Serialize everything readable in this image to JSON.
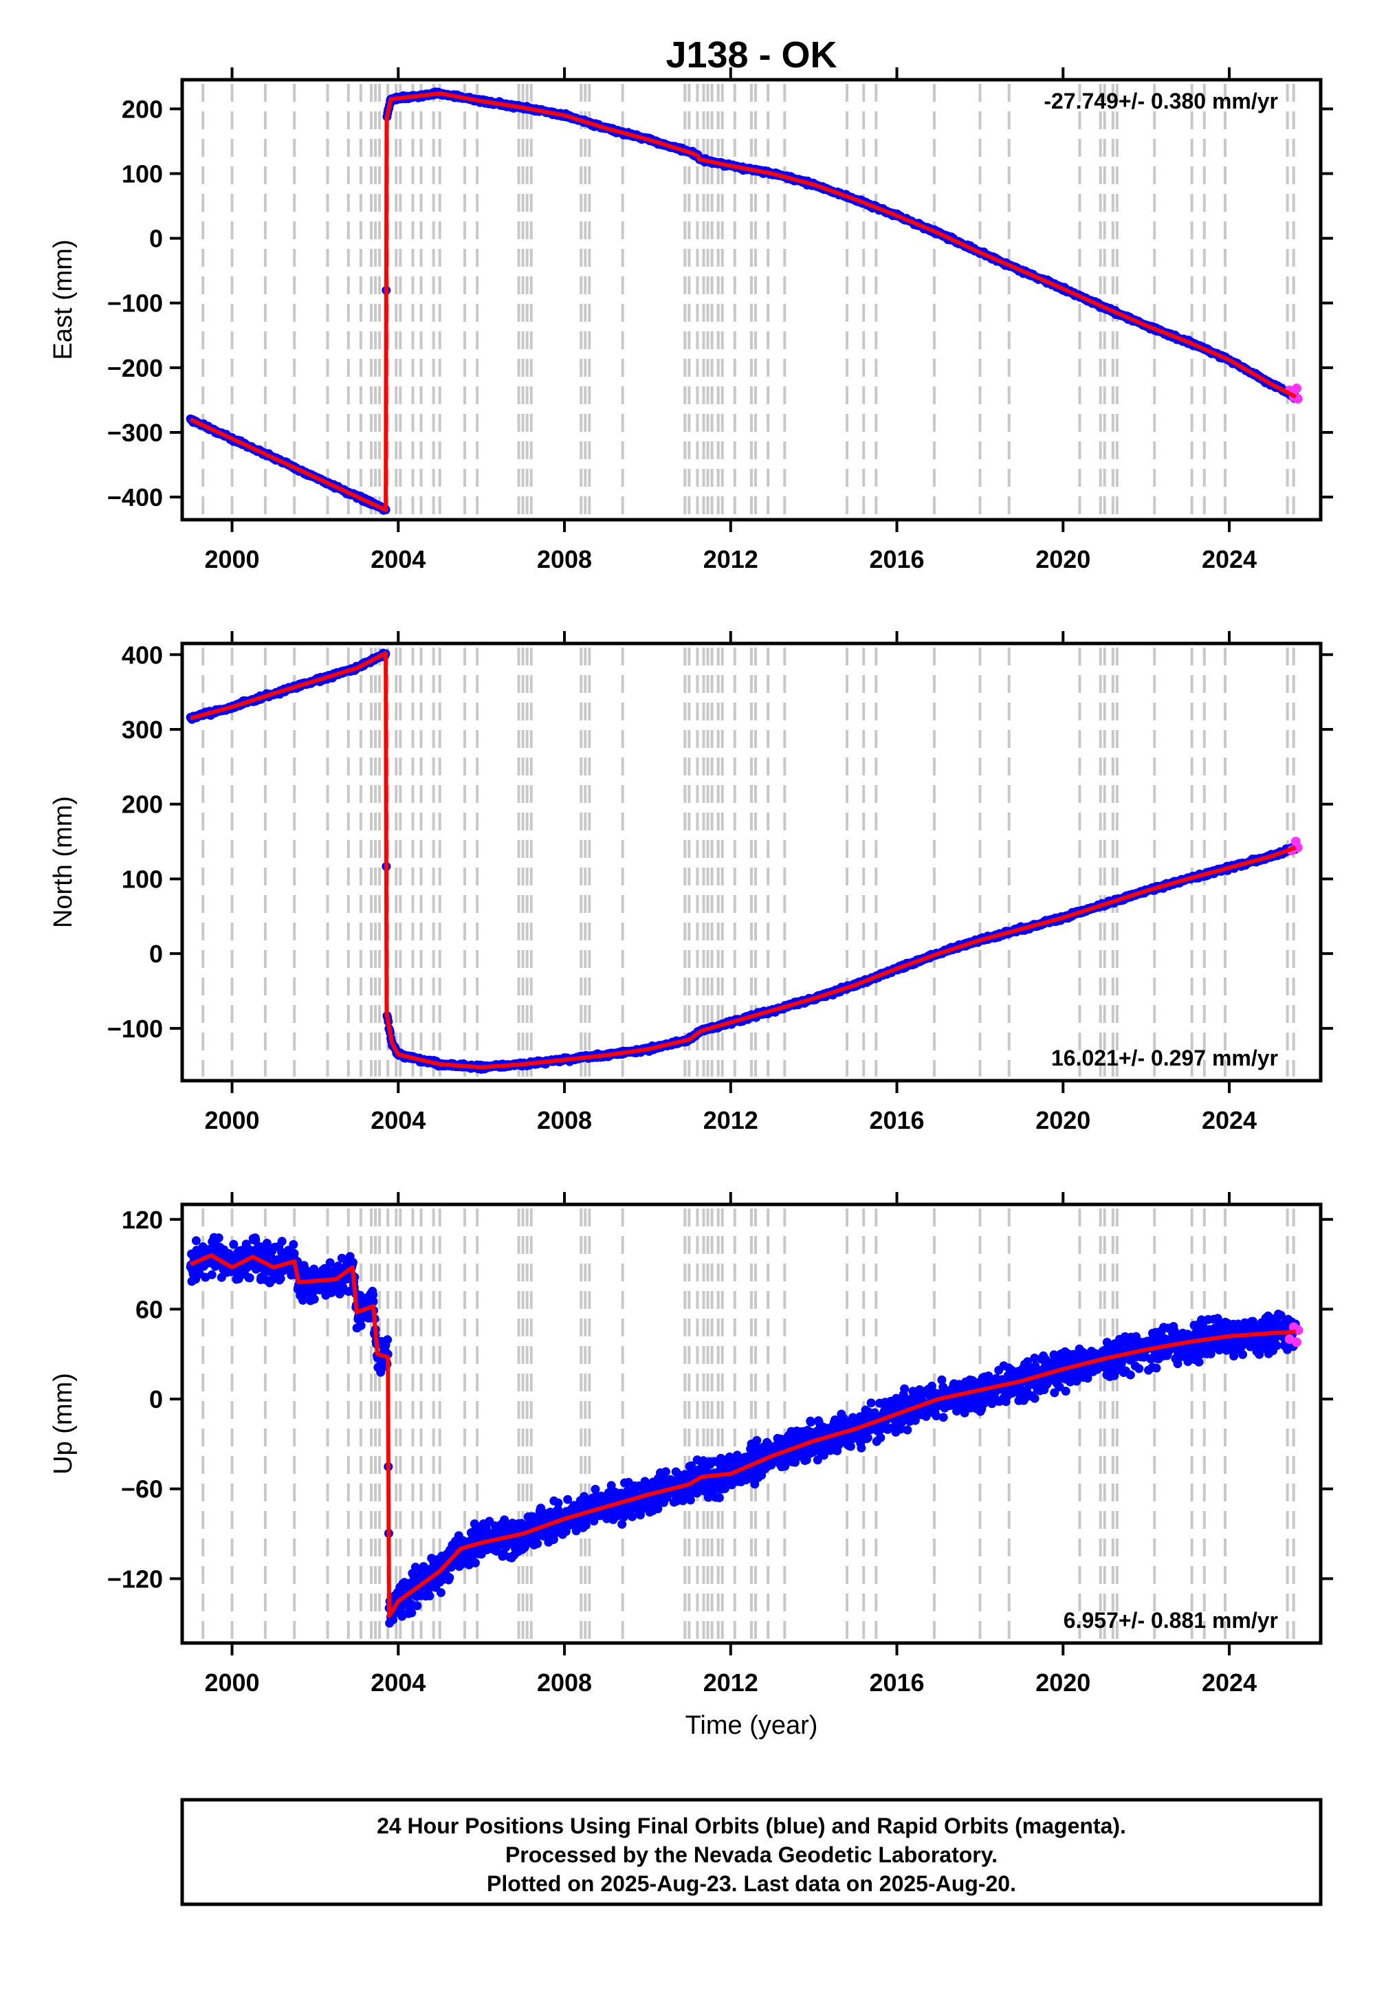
{
  "title": "J138 - OK",
  "colors": {
    "final": "#0000ff",
    "rapid": "#ff33ff",
    "model": "#ff0000",
    "events": "#c8c8c8"
  },
  "chart_data": [
    {
      "type": "scatter",
      "ylabel": "East (mm)",
      "xlim": [
        1998.8,
        2026.2
      ],
      "ylim": [
        -435,
        245
      ],
      "yticks": [
        200,
        100,
        0,
        -100,
        -200,
        -300,
        -400
      ],
      "ytick_labels": [
        "200",
        "100",
        "0",
        "−100",
        "−200",
        "−300",
        "−400"
      ],
      "xticks": [
        2000,
        2004,
        2008,
        2012,
        2016,
        2020,
        2024
      ],
      "xtick_labels": [
        "2000",
        "2004",
        "2008",
        "2012",
        "2016",
        "2020",
        "2024"
      ],
      "rate_label": "-27.749+/- 0.380 mm/yr",
      "rate_position": "top-right",
      "scatter": 2,
      "model": [
        [
          1999.0,
          -280
        ],
        [
          2003.7,
          -420
        ],
        [
          2003.72,
          185
        ],
        [
          2003.82,
          215
        ],
        [
          2004.5,
          220
        ],
        [
          2005.0,
          224
        ],
        [
          2006.0,
          212
        ],
        [
          2007.0,
          202
        ],
        [
          2008.0,
          190
        ],
        [
          2009.0,
          170
        ],
        [
          2010.0,
          153
        ],
        [
          2011.0,
          133
        ],
        [
          2011.2,
          128
        ],
        [
          2011.25,
          122
        ],
        [
          2012.0,
          112
        ],
        [
          2013.0,
          100
        ],
        [
          2014.0,
          83
        ],
        [
          2015.0,
          60
        ],
        [
          2016.0,
          35
        ],
        [
          2017.0,
          8
        ],
        [
          2018.0,
          -22
        ],
        [
          2019.0,
          -50
        ],
        [
          2020.0,
          -78
        ],
        [
          2021.0,
          -107
        ],
        [
          2022.0,
          -135
        ],
        [
          2023.0,
          -160
        ],
        [
          2024.0,
          -188
        ],
        [
          2025.0,
          -225
        ],
        [
          2025.6,
          -245
        ]
      ],
      "rapid": [
        [
          2025.45,
          -235
        ],
        [
          2025.55,
          -245
        ],
        [
          2025.62,
          -232
        ],
        [
          2025.65,
          -248
        ]
      ]
    },
    {
      "type": "scatter",
      "ylabel": "North (mm)",
      "xlim": [
        1998.8,
        2026.2
      ],
      "ylim": [
        -170,
        415
      ],
      "yticks": [
        400,
        300,
        200,
        100,
        0,
        -100
      ],
      "ytick_labels": [
        "400",
        "300",
        "200",
        "100",
        "0",
        "−100"
      ],
      "xticks": [
        2000,
        2004,
        2008,
        2012,
        2016,
        2020,
        2024
      ],
      "xtick_labels": [
        "2000",
        "2004",
        "2008",
        "2012",
        "2016",
        "2020",
        "2024"
      ],
      "rate_label": "16.021+/- 0.297 mm/yr",
      "rate_position": "bottom-right",
      "scatter": 2,
      "model": [
        [
          1999.0,
          315
        ],
        [
          2000.0,
          330
        ],
        [
          2001.0,
          348
        ],
        [
          2002.0,
          365
        ],
        [
          2003.0,
          382
        ],
        [
          2003.7,
          402
        ],
        [
          2003.72,
          -80
        ],
        [
          2003.85,
          -120
        ],
        [
          2004.0,
          -135
        ],
        [
          2005.0,
          -148
        ],
        [
          2006.0,
          -152
        ],
        [
          2007.0,
          -148
        ],
        [
          2008.0,
          -142
        ],
        [
          2009.0,
          -136
        ],
        [
          2010.0,
          -128
        ],
        [
          2011.0,
          -115
        ],
        [
          2011.3,
          -103
        ],
        [
          2012.0,
          -92
        ],
        [
          2013.0,
          -76
        ],
        [
          2014.0,
          -60
        ],
        [
          2015.0,
          -42
        ],
        [
          2016.0,
          -20
        ],
        [
          2017.0,
          0
        ],
        [
          2018.0,
          18
        ],
        [
          2019.0,
          33
        ],
        [
          2020.0,
          48
        ],
        [
          2021.0,
          66
        ],
        [
          2022.0,
          84
        ],
        [
          2023.0,
          100
        ],
        [
          2024.0,
          115
        ],
        [
          2025.0,
          130
        ],
        [
          2025.6,
          142
        ]
      ],
      "rapid": [
        [
          2025.5,
          138
        ],
        [
          2025.6,
          150
        ],
        [
          2025.65,
          142
        ]
      ]
    },
    {
      "type": "scatter",
      "ylabel": "Up (mm)",
      "xlabel": "Time (year)",
      "xlim": [
        1998.8,
        2026.2
      ],
      "ylim": [
        -163,
        130
      ],
      "yticks": [
        120,
        60,
        0,
        -60,
        -120
      ],
      "ytick_labels": [
        "120",
        "60",
        "0",
        "−60",
        "−120"
      ],
      "xticks": [
        2000,
        2004,
        2008,
        2012,
        2016,
        2020,
        2024
      ],
      "xtick_labels": [
        "2000",
        "2004",
        "2008",
        "2012",
        "2016",
        "2020",
        "2024"
      ],
      "rate_label": "6.957+/- 0.881 mm/yr",
      "rate_position": "bottom-right",
      "scatter": 9,
      "model": [
        [
          1999.0,
          90
        ],
        [
          1999.5,
          96
        ],
        [
          2000.0,
          88
        ],
        [
          2000.5,
          95
        ],
        [
          2001.0,
          88
        ],
        [
          2001.5,
          92
        ],
        [
          2001.6,
          78
        ],
        [
          2002.5,
          80
        ],
        [
          2002.9,
          88
        ],
        [
          2003.0,
          58
        ],
        [
          2003.4,
          62
        ],
        [
          2003.5,
          30
        ],
        [
          2003.75,
          28
        ],
        [
          2003.78,
          -145
        ],
        [
          2004.0,
          -135
        ],
        [
          2004.5,
          -125
        ],
        [
          2005.0,
          -115
        ],
        [
          2005.5,
          -100
        ],
        [
          2006.0,
          -96
        ],
        [
          2007.0,
          -90
        ],
        [
          2008.0,
          -80
        ],
        [
          2009.0,
          -72
        ],
        [
          2010.0,
          -64
        ],
        [
          2011.0,
          -57
        ],
        [
          2011.3,
          -52
        ],
        [
          2012.0,
          -50
        ],
        [
          2013.0,
          -38
        ],
        [
          2014.0,
          -28
        ],
        [
          2015.0,
          -20
        ],
        [
          2016.0,
          -10
        ],
        [
          2017.0,
          0
        ],
        [
          2018.0,
          6
        ],
        [
          2019.0,
          12
        ],
        [
          2020.0,
          20
        ],
        [
          2021.0,
          27
        ],
        [
          2022.0,
          33
        ],
        [
          2023.0,
          38
        ],
        [
          2024.0,
          42
        ],
        [
          2025.0,
          44
        ],
        [
          2025.6,
          45
        ]
      ],
      "rapid": [
        [
          2025.45,
          40
        ],
        [
          2025.55,
          48
        ],
        [
          2025.62,
          38
        ],
        [
          2025.66,
          46
        ]
      ]
    }
  ],
  "event_lines": [
    1999.3,
    2000.0,
    2000.8,
    2001.5,
    2002.3,
    2002.8,
    2003.1,
    2003.35,
    2003.45,
    2003.55,
    2003.75,
    2003.95,
    2004.05,
    2004.35,
    2004.55,
    2004.85,
    2005.0,
    2005.6,
    2005.9,
    2006.9,
    2007.0,
    2007.1,
    2007.2,
    2008.4,
    2008.5,
    2008.6,
    2009.4,
    2010.9,
    2011.0,
    2011.2,
    2011.35,
    2011.45,
    2011.55,
    2011.7,
    2011.8,
    2012.1,
    2012.5,
    2012.6,
    2012.9,
    2013.3,
    2014.8,
    2015.2,
    2015.5,
    2016.9,
    2018.0,
    2018.7,
    2020.4,
    2020.9,
    2021.0,
    2021.2,
    2021.3,
    2022.2,
    2023.1,
    2023.4,
    2023.9,
    2025.4,
    2025.55
  ],
  "footer": {
    "line1": "24 Hour Positions Using Final Orbits (blue) and Rapid Orbits (magenta).",
    "line2": "Processed by the Nevada Geodetic Laboratory.",
    "line3": "Plotted on 2025-Aug-23. Last data on 2025-Aug-20."
  }
}
